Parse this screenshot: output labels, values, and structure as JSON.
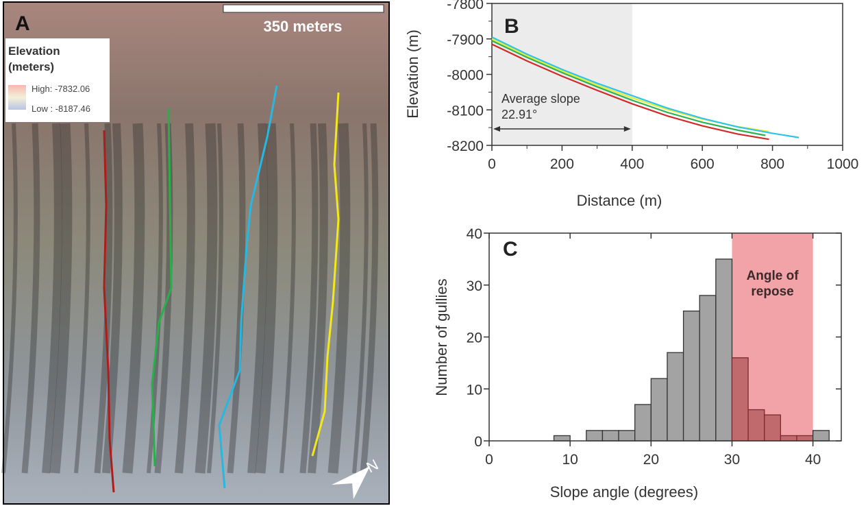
{
  "panel_a": {
    "label": "A",
    "scale_bar": "350 meters",
    "legend_title_line1": "Elevation",
    "legend_title_line2": "(meters)",
    "legend_high": "High: -7832.06",
    "legend_low": "Low : -8187.46",
    "north_label": "N",
    "gully_colors": [
      "#b01c1c",
      "#27b04a",
      "#26b8e0",
      "#f2e81a"
    ]
  },
  "chart_data": [
    {
      "panel": "B",
      "type": "line",
      "xlabel": "Distance (m)",
      "ylabel": "Elevation (m)",
      "xlim": [
        0,
        1000
      ],
      "ylim": [
        -8200,
        -7800
      ],
      "xticks": [
        "0",
        "200",
        "400",
        "600",
        "800",
        "1000"
      ],
      "yticks": [
        "-7800",
        "-7900",
        "-8000",
        "-8100",
        "-8200"
      ],
      "shaded_region": [
        0,
        400
      ],
      "annotation_line1": "Average slope",
      "annotation_line2": "22.91°",
      "series": [
        {
          "color": "#d02a2a",
          "x": [
            0,
            100,
            200,
            300,
            400,
            500,
            600,
            700,
            790
          ],
          "y": [
            -7915,
            -7962,
            -8005,
            -8045,
            -8083,
            -8117,
            -8145,
            -8168,
            -8183
          ]
        },
        {
          "color": "#2db24e",
          "x": [
            0,
            100,
            200,
            300,
            400,
            500,
            600,
            700,
            780
          ],
          "y": [
            -7905,
            -7952,
            -7995,
            -8035,
            -8073,
            -8107,
            -8135,
            -8157,
            -8172
          ]
        },
        {
          "color": "#e6ee3a",
          "x": [
            0,
            100,
            200,
            300,
            400,
            500,
            600,
            700,
            790
          ],
          "y": [
            -7900,
            -7947,
            -7990,
            -8030,
            -8066,
            -8099,
            -8126,
            -8147,
            -8161
          ]
        },
        {
          "color": "#2ec4e8",
          "x": [
            0,
            100,
            200,
            300,
            400,
            500,
            600,
            700,
            800,
            875
          ],
          "y": [
            -7895,
            -7943,
            -7986,
            -8025,
            -8060,
            -8095,
            -8124,
            -8148,
            -8166,
            -8178
          ]
        }
      ]
    },
    {
      "panel": "C",
      "type": "bar",
      "xlabel": "Slope angle (degrees)",
      "ylabel": "Number of gullies",
      "xlim": [
        0,
        43.5
      ],
      "ylim": [
        0,
        40
      ],
      "xticks": [
        "0",
        "10",
        "20",
        "30",
        "40"
      ],
      "yticks": [
        "0",
        "10",
        "20",
        "30",
        "40"
      ],
      "bin_width": 2,
      "bin_starts": [
        8,
        10,
        12,
        14,
        16,
        18,
        20,
        22,
        24,
        26,
        28,
        30,
        32,
        34,
        36,
        38,
        40
      ],
      "values": [
        1,
        0,
        2,
        2,
        2,
        7,
        12,
        17,
        25,
        28,
        35,
        16,
        6,
        5,
        1,
        1,
        2
      ],
      "shaded_region": [
        30,
        40
      ],
      "shaded_label_line1": "Angle of",
      "shaded_label_line2": "repose",
      "bar_color": "#a3a3a3",
      "shade_color": "#f2a3a8"
    }
  ]
}
